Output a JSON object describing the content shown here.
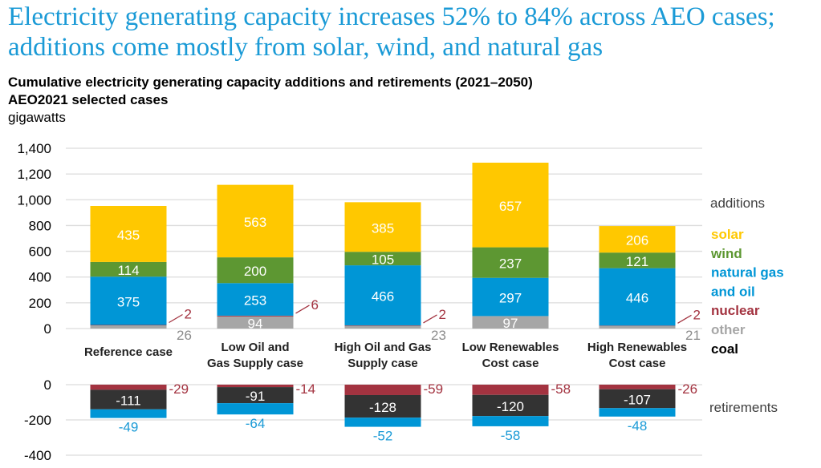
{
  "title": "Electricity generating capacity increases 52% to 84% across AEO cases; additions come mostly from solar, wind, and natural gas",
  "chart_data": {
    "type": "bar",
    "stacked": true,
    "title": "Cumulative electricity generating capacity additions and retirements (2021–2050)",
    "subtitle": "AEO2021 selected cases",
    "ylabel": "gigawatts",
    "categories": [
      [
        "Reference case"
      ],
      [
        "Low Oil and",
        "Gas Supply case"
      ],
      [
        "High Oil and Gas",
        "Supply case"
      ],
      [
        "Low Renewables",
        "Cost case"
      ],
      [
        "High Renewables",
        "Cost case"
      ]
    ],
    "additions": {
      "label": "additions",
      "ylim": [
        0,
        1400
      ],
      "yticks": [
        "0",
        "200",
        "400",
        "600",
        "800",
        "1,000",
        "1,200",
        "1,400"
      ],
      "series": [
        {
          "name": "other",
          "color": "#a6a6a6",
          "values": [
            26,
            94,
            23,
            97,
            21
          ]
        },
        {
          "name": "nuclear",
          "color": "#a33340",
          "values": [
            2,
            6,
            2,
            null,
            2
          ]
        },
        {
          "name": "natural gas and oil",
          "color": "#0096d6",
          "values": [
            375,
            253,
            466,
            297,
            446
          ]
        },
        {
          "name": "wind",
          "color": "#5d9732",
          "values": [
            114,
            200,
            105,
            237,
            121
          ]
        },
        {
          "name": "solar",
          "color": "#ffc800",
          "values": [
            435,
            563,
            385,
            657,
            206
          ]
        }
      ]
    },
    "retirements": {
      "label": "retirements",
      "ylim": [
        -400,
        0
      ],
      "yticks": [
        "0",
        "-200",
        "-400"
      ],
      "series": [
        {
          "name": "nuclear",
          "color": "#a33340",
          "values": [
            -29,
            -14,
            -59,
            -58,
            -26
          ]
        },
        {
          "name": "coal",
          "color": "#333333",
          "values": [
            -111,
            -91,
            -128,
            -120,
            -107
          ]
        },
        {
          "name": "natural gas and oil",
          "color": "#0096d6",
          "values": [
            -49,
            -64,
            -52,
            -58,
            -48
          ]
        }
      ]
    },
    "legend": {
      "placement": "right",
      "items": [
        {
          "label": "solar",
          "color": "#ffc800"
        },
        {
          "label": "wind",
          "color": "#5d9732"
        },
        {
          "label": "natural gas",
          "color": "#0096d6"
        },
        {
          "label": "and oil",
          "color": "#0096d6"
        },
        {
          "label": "nuclear",
          "color": "#a33340"
        },
        {
          "label": "other",
          "color": "#a6a6a6"
        },
        {
          "label": "coal",
          "color": "#000000"
        }
      ]
    }
  }
}
